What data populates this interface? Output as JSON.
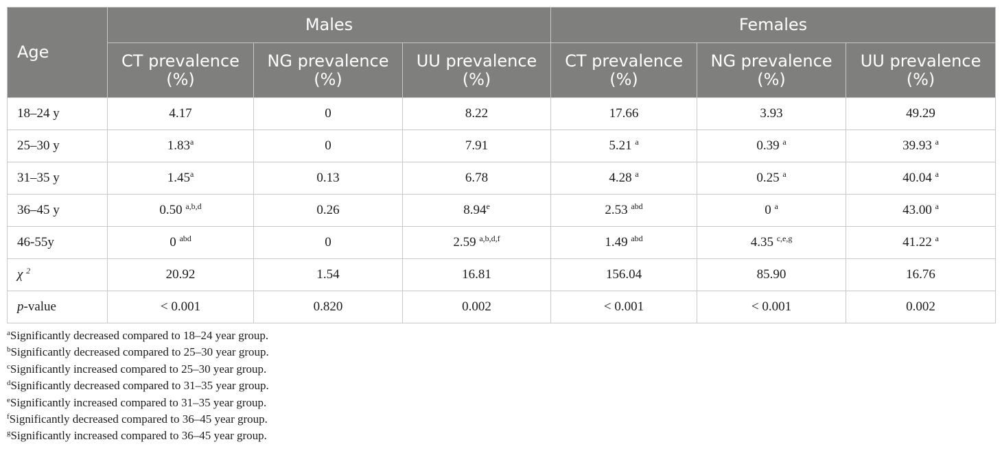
{
  "table": {
    "age_header": "Age",
    "groups": [
      "Males",
      "Females"
    ],
    "columns": [
      {
        "line1": "CT prevalence",
        "line2": "(%)"
      },
      {
        "line1": "NG prevalence",
        "line2": "(%)"
      },
      {
        "line1": "UU prevalence",
        "line2": "(%)"
      },
      {
        "line1": "CT prevalence",
        "line2": "(%)"
      },
      {
        "line1": "NG prevalence",
        "line2": "(%)"
      },
      {
        "line1": "UU prevalence",
        "line2": "(%)"
      }
    ],
    "rows": [
      {
        "label": "18–24 y",
        "cells": [
          {
            "v": "4.17",
            "s": ""
          },
          {
            "v": "0",
            "s": ""
          },
          {
            "v": "8.22",
            "s": ""
          },
          {
            "v": "17.66",
            "s": ""
          },
          {
            "v": "3.93",
            "s": ""
          },
          {
            "v": "49.29",
            "s": ""
          }
        ]
      },
      {
        "label": "25–30 y",
        "cells": [
          {
            "v": "1.83",
            "s": "a"
          },
          {
            "v": "0",
            "s": ""
          },
          {
            "v": "7.91",
            "s": ""
          },
          {
            "v": "5.21 ",
            "s": "a"
          },
          {
            "v": "0.39 ",
            "s": "a"
          },
          {
            "v": "39.93 ",
            "s": "a"
          }
        ]
      },
      {
        "label": "31–35 y",
        "cells": [
          {
            "v": "1.45",
            "s": "a"
          },
          {
            "v": "0.13",
            "s": ""
          },
          {
            "v": "6.78",
            "s": ""
          },
          {
            "v": "4.28 ",
            "s": "a"
          },
          {
            "v": "0.25 ",
            "s": "a"
          },
          {
            "v": "40.04 ",
            "s": "a"
          }
        ]
      },
      {
        "label": "36–45 y",
        "cells": [
          {
            "v": "0.50 ",
            "s": "a,b,d"
          },
          {
            "v": "0.26",
            "s": ""
          },
          {
            "v": "8.94",
            "s": "e"
          },
          {
            "v": "2.53 ",
            "s": "abd"
          },
          {
            "v": "0 ",
            "s": "a"
          },
          {
            "v": "43.00 ",
            "s": "a"
          }
        ]
      },
      {
        "label": "46-55y",
        "cells": [
          {
            "v": "0 ",
            "s": "abd"
          },
          {
            "v": "0",
            "s": ""
          },
          {
            "v": "2.59 ",
            "s": "a,b,d,f"
          },
          {
            "v": "1.49 ",
            "s": "abd"
          },
          {
            "v": "4.35 ",
            "s": "c,e,g"
          },
          {
            "v": "41.22 ",
            "s": "a"
          }
        ]
      }
    ],
    "chi_row": {
      "symbol": "χ",
      "sup": "2",
      "cells": [
        "20.92",
        "1.54",
        "16.81",
        "156.04",
        "85.90",
        "16.76"
      ]
    },
    "p_row": {
      "label_italic": "p",
      "label_rest": "-value",
      "cells": [
        "< 0.001",
        "0.820",
        "0.002",
        "< 0.001",
        "< 0.001",
        "0.002"
      ]
    }
  },
  "footnotes": [
    {
      "mark": "a",
      "text": "Significantly decreased compared to 18–24 year group."
    },
    {
      "mark": "b",
      "text": "Significantly decreased compared to 25–30 year group."
    },
    {
      "mark": "c",
      "text": "Significantly increased compared to 25–30 year group."
    },
    {
      "mark": "d",
      "text": "Significantly decreased compared to 31–35 year group."
    },
    {
      "mark": "e",
      "text": "Significantly increased compared to 31–35 year group."
    },
    {
      "mark": "f",
      "text": "Significantly decreased compared to 36–45 year group."
    },
    {
      "mark": "g",
      "text": "Significantly increased compared to 36–45 year group."
    }
  ]
}
